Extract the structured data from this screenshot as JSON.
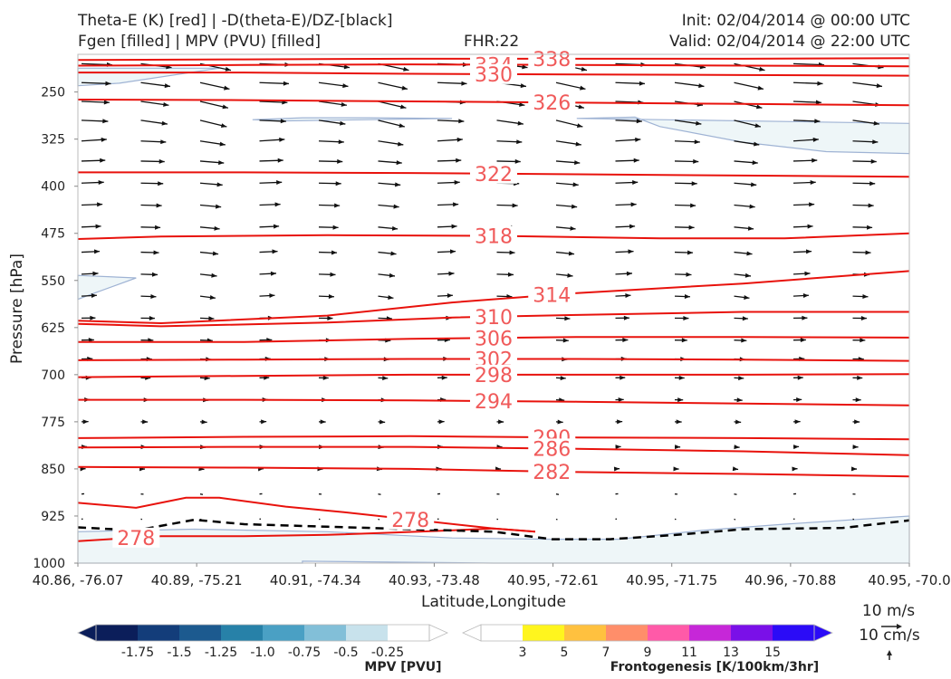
{
  "header": {
    "title_line1": "Theta-E (K) [red] | -D(theta-E)/DZ-[black]",
    "title_line2": "Fgen [filled] | MPV (PVU) [filled]",
    "fhr": "FHR:22",
    "init": "Init: 02/04/2014 @ 00:00 UTC",
    "valid": "Valid: 02/04/2014 @ 22:00 UTC"
  },
  "chart_data": {
    "type": "cross-section",
    "xlabel": "Latitude,Longitude",
    "ylabel": "Pressure [hPa]",
    "x_ticks": [
      "40.86, -76.07",
      "40.89, -75.21",
      "40.91, -74.34",
      "40.93, -73.48",
      "40.95, -72.61",
      "40.95, -71.75",
      "40.96, -70.88",
      "40.95, -70.0"
    ],
    "y_ticks": [
      250,
      325,
      400,
      475,
      550,
      625,
      700,
      775,
      850,
      925,
      1000
    ],
    "ylim": [
      1000,
      190
    ],
    "theta_e_color": "#e8120c",
    "theta_e_contours": [
      {
        "value": 338,
        "label_x": 0.57,
        "points": [
          [
            0,
            199
          ],
          [
            0.2,
            198
          ],
          [
            0.4,
            197
          ],
          [
            0.6,
            197
          ],
          [
            0.8,
            197
          ],
          [
            1,
            196
          ]
        ]
      },
      {
        "value": 334,
        "label_x": 0.5,
        "points": [
          [
            0,
            208
          ],
          [
            0.2,
            207
          ],
          [
            0.4,
            206
          ],
          [
            0.6,
            207
          ],
          [
            0.8,
            208
          ],
          [
            1,
            209
          ]
        ]
      },
      {
        "value": 330,
        "label_x": 0.5,
        "points": [
          [
            0,
            219
          ],
          [
            0.2,
            219
          ],
          [
            0.4,
            221
          ],
          [
            0.6,
            222
          ],
          [
            0.8,
            223
          ],
          [
            1,
            224
          ]
        ]
      },
      {
        "value": 326,
        "label_x": 0.57,
        "points": [
          [
            0,
            262
          ],
          [
            0.2,
            263
          ],
          [
            0.4,
            265
          ],
          [
            0.6,
            267
          ],
          [
            0.8,
            269
          ],
          [
            1,
            271
          ]
        ]
      },
      {
        "value": 322,
        "label_x": 0.5,
        "points": [
          [
            0,
            378
          ],
          [
            0.2,
            378
          ],
          [
            0.4,
            379
          ],
          [
            0.6,
            381
          ],
          [
            0.8,
            383
          ],
          [
            1,
            385
          ]
        ]
      },
      {
        "value": 318,
        "label_x": 0.5,
        "points": [
          [
            0,
            484
          ],
          [
            0.1,
            480
          ],
          [
            0.3,
            478
          ],
          [
            0.5,
            479
          ],
          [
            0.7,
            483
          ],
          [
            0.85,
            483
          ],
          [
            1,
            475
          ]
        ]
      },
      {
        "value": 314,
        "label_x": 0.57,
        "points": [
          [
            0,
            614
          ],
          [
            0.1,
            618
          ],
          [
            0.3,
            606
          ],
          [
            0.45,
            585
          ],
          [
            0.6,
            570
          ],
          [
            0.8,
            555
          ],
          [
            1,
            535
          ]
        ]
      },
      {
        "value": 310,
        "label_x": 0.5,
        "points": [
          [
            0,
            619
          ],
          [
            0.1,
            623
          ],
          [
            0.3,
            617
          ],
          [
            0.45,
            609
          ],
          [
            0.6,
            605
          ],
          [
            0.8,
            600
          ],
          [
            1,
            600
          ]
        ]
      },
      {
        "value": 306,
        "label_x": 0.5,
        "points": [
          [
            0,
            648
          ],
          [
            0.2,
            648
          ],
          [
            0.4,
            643
          ],
          [
            0.6,
            640
          ],
          [
            0.8,
            640
          ],
          [
            1,
            641
          ]
        ]
      },
      {
        "value": 302,
        "label_x": 0.5,
        "points": [
          [
            0,
            677
          ],
          [
            0.2,
            676
          ],
          [
            0.4,
            675
          ],
          [
            0.6,
            675
          ],
          [
            0.8,
            676
          ],
          [
            1,
            678
          ]
        ]
      },
      {
        "value": 298,
        "label_x": 0.5,
        "points": [
          [
            0,
            704
          ],
          [
            0.2,
            702
          ],
          [
            0.4,
            700
          ],
          [
            0.6,
            700
          ],
          [
            0.8,
            700
          ],
          [
            1,
            699
          ]
        ]
      },
      {
        "value": 294,
        "label_x": 0.5,
        "points": [
          [
            0,
            740
          ],
          [
            0.2,
            740
          ],
          [
            0.4,
            741
          ],
          [
            0.6,
            743
          ],
          [
            0.8,
            746
          ],
          [
            1,
            749
          ]
        ]
      },
      {
        "value": 290,
        "label_x": 0.57,
        "points": [
          [
            0,
            801
          ],
          [
            0.2,
            799
          ],
          [
            0.4,
            798
          ],
          [
            0.6,
            800
          ],
          [
            0.8,
            801
          ],
          [
            1,
            803
          ]
        ]
      },
      {
        "value": 286,
        "label_x": 0.57,
        "points": [
          [
            0,
            816
          ],
          [
            0.2,
            815
          ],
          [
            0.4,
            815
          ],
          [
            0.6,
            818
          ],
          [
            0.8,
            822
          ],
          [
            1,
            828
          ]
        ]
      },
      {
        "value": 282,
        "label_x": 0.57,
        "points": [
          [
            0,
            847
          ],
          [
            0.2,
            848
          ],
          [
            0.4,
            850
          ],
          [
            0.6,
            855
          ],
          [
            0.8,
            858
          ],
          [
            1,
            862
          ]
        ]
      },
      {
        "value": 278,
        "label_x": 0.4,
        "points": [
          [
            0,
            904
          ],
          [
            0.07,
            912
          ],
          [
            0.13,
            896
          ],
          [
            0.17,
            896
          ],
          [
            0.25,
            910
          ],
          [
            0.32,
            919
          ],
          [
            0.41,
            932
          ],
          [
            0.5,
            945
          ],
          [
            0.55,
            950
          ]
        ]
      },
      {
        "value": 278,
        "label_x": 0.07,
        "points": [
          [
            0,
            965
          ],
          [
            0.1,
            957
          ],
          [
            0.2,
            957
          ],
          [
            0.3,
            955
          ],
          [
            0.41,
            950
          ],
          [
            0.5,
            945
          ],
          [
            0.55,
            950
          ]
        ]
      }
    ],
    "dashed_line": {
      "color": "#000000",
      "points": [
        [
          0,
          943
        ],
        [
          0.07,
          948
        ],
        [
          0.14,
          931
        ],
        [
          0.2,
          938
        ],
        [
          0.3,
          942
        ],
        [
          0.4,
          946
        ],
        [
          0.5,
          950
        ],
        [
          0.57,
          962
        ],
        [
          0.64,
          962
        ],
        [
          0.72,
          955
        ],
        [
          0.8,
          946
        ],
        [
          0.92,
          944
        ],
        [
          1,
          932
        ]
      ]
    },
    "mpv_colormap": {
      "ticks": [
        "-1.75",
        "-1.5",
        "-1.25",
        "-1.0",
        "-0.75",
        "-0.5",
        "-0.25"
      ],
      "colors": [
        "#0b1e5a",
        "#133d7a",
        "#1c5a8f",
        "#2781a8",
        "#4aa0c4",
        "#82bfd8",
        "#c8e2ec",
        "#ffffff"
      ],
      "label": "MPV [PVU]"
    },
    "fgen_colormap": {
      "ticks": [
        "3",
        "5",
        "7",
        "9",
        "11",
        "13",
        "15"
      ],
      "colors": [
        "#ffffff",
        "#fff51e",
        "#ffc13f",
        "#ff8e6a",
        "#ff5aa8",
        "#c627d8",
        "#7a10e8",
        "#2b0bf7"
      ],
      "label": "Frontogenesis [K/100km/3hr]"
    },
    "wind_scale": {
      "horizontal": "10 m/s",
      "vertical": "10 cm/s"
    }
  }
}
